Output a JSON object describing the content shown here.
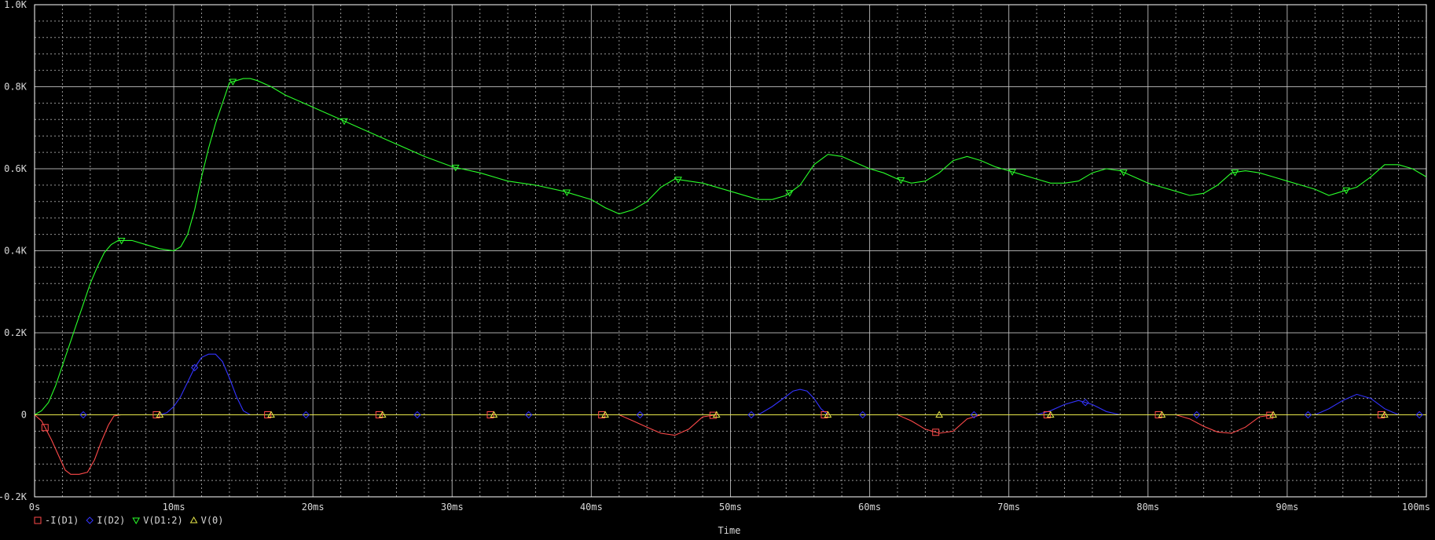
{
  "chart_data": {
    "type": "line",
    "xlabel": "Time",
    "ylabel": "",
    "xlim": [
      0,
      100
    ],
    "ylim": [
      -200,
      1000
    ],
    "x_ticks": [
      {
        "value": 0,
        "label": "0s"
      },
      {
        "value": 10,
        "label": "10ms"
      },
      {
        "value": 20,
        "label": "20ms"
      },
      {
        "value": 30,
        "label": "30ms"
      },
      {
        "value": 40,
        "label": "40ms"
      },
      {
        "value": 50,
        "label": "50ms"
      },
      {
        "value": 60,
        "label": "60ms"
      },
      {
        "value": 70,
        "label": "70ms"
      },
      {
        "value": 80,
        "label": "80ms"
      },
      {
        "value": 90,
        "label": "90ms"
      },
      {
        "value": 100,
        "label": "100ms"
      }
    ],
    "y_ticks": [
      {
        "value": -200,
        "label": "-0.2K"
      },
      {
        "value": 0,
        "label": "0"
      },
      {
        "value": 200,
        "label": "0.2K"
      },
      {
        "value": 400,
        "label": "0.4K"
      },
      {
        "value": 600,
        "label": "0.6K"
      },
      {
        "value": 800,
        "label": "0.8K"
      },
      {
        "value": 1000,
        "label": "1.0K"
      }
    ],
    "grid": true,
    "legend_position": "bottom-left",
    "colors": {
      "background": "#000000",
      "grid": "#c8c8c8",
      "axis": "#ffffff",
      "text": "#d8d8d8"
    },
    "series": [
      {
        "name": "-I(D1)",
        "color": "#ff4a4a",
        "marker": "square",
        "x": [
          0,
          0.5,
          1.2,
          1.8,
          2.2,
          2.6,
          3.2,
          3.8,
          4.3,
          4.8,
          5.3,
          5.7,
          6.2,
          7,
          8,
          9,
          10,
          11,
          12,
          13,
          14,
          15,
          16,
          17,
          18,
          19,
          20,
          21,
          22,
          23,
          24,
          25,
          26,
          27,
          28,
          29,
          30,
          31,
          32,
          33,
          34,
          35,
          36,
          37,
          38,
          39,
          40,
          41,
          42,
          43,
          44,
          45,
          46,
          47,
          48,
          49,
          50,
          51,
          52,
          53,
          54,
          55,
          56,
          57,
          58,
          59,
          60,
          61,
          62,
          63,
          64,
          65,
          66,
          67,
          68,
          69,
          70,
          71,
          72,
          73,
          74,
          75,
          76,
          77,
          78,
          79,
          80,
          81,
          82,
          83,
          84,
          85,
          86,
          87,
          88,
          89,
          90,
          91,
          92,
          93,
          94,
          95,
          96,
          97,
          98,
          99,
          100
        ],
        "y": [
          0,
          -15,
          -60,
          -105,
          -135,
          -145,
          -145,
          -140,
          -110,
          -65,
          -25,
          -3,
          0,
          0,
          0,
          0,
          0,
          0,
          0,
          0,
          0,
          0,
          0,
          0,
          0,
          0,
          0,
          0,
          0,
          0,
          0,
          0,
          0,
          0,
          0,
          0,
          0,
          0,
          0,
          0,
          0,
          0,
          0,
          0,
          0,
          0,
          0,
          0,
          0,
          -15,
          -30,
          -45,
          -50,
          -35,
          -5,
          0,
          0,
          0,
          0,
          0,
          0,
          0,
          0,
          0,
          0,
          0,
          0,
          0,
          0,
          -15,
          -35,
          -45,
          -40,
          -10,
          0,
          0,
          0,
          0,
          0,
          0,
          0,
          0,
          0,
          0,
          0,
          0,
          0,
          0,
          0,
          -10,
          -28,
          -42,
          -45,
          -30,
          -5,
          0,
          0,
          0,
          0,
          0,
          0,
          0,
          0,
          0,
          0,
          0,
          0
        ]
      },
      {
        "name": "I(D2)",
        "color": "#3333ff",
        "marker": "diamond",
        "x": [
          0,
          9,
          9.5,
          10,
          10.5,
          11,
          11.5,
          12,
          12.5,
          13,
          13.5,
          14,
          14.5,
          15,
          15.5,
          16,
          20,
          30,
          40,
          50,
          52,
          53,
          54,
          54.5,
          55,
          55.5,
          56,
          56.5,
          57,
          60,
          70,
          72,
          73,
          74,
          75,
          76,
          77,
          78,
          80,
          90,
          92,
          93,
          94,
          95,
          96,
          97,
          98,
          100
        ],
        "y": [
          0,
          0,
          5,
          20,
          45,
          80,
          115,
          140,
          148,
          148,
          130,
          90,
          45,
          10,
          0,
          0,
          0,
          0,
          0,
          0,
          0,
          20,
          45,
          58,
          62,
          58,
          40,
          15,
          0,
          0,
          0,
          0,
          10,
          25,
          35,
          25,
          8,
          0,
          0,
          0,
          0,
          15,
          35,
          50,
          40,
          15,
          0,
          0
        ]
      },
      {
        "name": "V(D1:2)",
        "color": "#2aff2a",
        "marker": "triangle-down",
        "x": [
          0,
          0.5,
          1,
          1.5,
          2,
          2.5,
          3,
          3.5,
          4,
          4.5,
          5,
          5.5,
          6,
          7,
          8,
          9,
          10,
          10.5,
          11,
          11.5,
          12,
          12.5,
          13,
          13.5,
          14,
          14.5,
          15,
          15.5,
          16,
          17,
          18,
          20,
          22,
          24,
          26,
          28,
          30,
          32,
          34,
          36,
          38,
          40,
          41,
          42,
          43,
          44,
          45,
          46,
          47,
          48,
          50,
          52,
          53,
          54,
          55,
          56,
          57,
          58,
          59,
          60,
          61,
          62,
          63,
          64,
          65,
          66,
          67,
          68,
          69,
          70,
          71,
          72,
          73,
          74,
          75,
          76,
          77,
          78,
          79,
          80,
          81,
          82,
          83,
          84,
          85,
          86,
          87,
          88,
          89,
          90,
          91,
          92,
          93,
          94,
          95,
          96,
          97,
          98,
          99,
          100
        ],
        "y": [
          0,
          10,
          30,
          70,
          120,
          170,
          220,
          270,
          320,
          360,
          395,
          415,
          425,
          425,
          415,
          405,
          400,
          410,
          440,
          500,
          580,
          650,
          710,
          760,
          810,
          815,
          820,
          820,
          815,
          800,
          780,
          750,
          720,
          690,
          660,
          630,
          605,
          590,
          570,
          560,
          545,
          525,
          505,
          490,
          500,
          520,
          555,
          575,
          570,
          565,
          545,
          525,
          525,
          535,
          560,
          610,
          635,
          630,
          615,
          600,
          590,
          575,
          565,
          570,
          590,
          620,
          630,
          620,
          605,
          595,
          585,
          575,
          565,
          565,
          570,
          590,
          600,
          595,
          580,
          565,
          555,
          545,
          535,
          540,
          560,
          590,
          595,
          590,
          580,
          570,
          560,
          550,
          535,
          545,
          555,
          580,
          610,
          610,
          600,
          580
        ]
      },
      {
        "name": "V(0)",
        "color": "#e8e84a",
        "marker": "triangle-up",
        "x": [
          0,
          100
        ],
        "y": [
          0,
          0
        ]
      }
    ]
  }
}
